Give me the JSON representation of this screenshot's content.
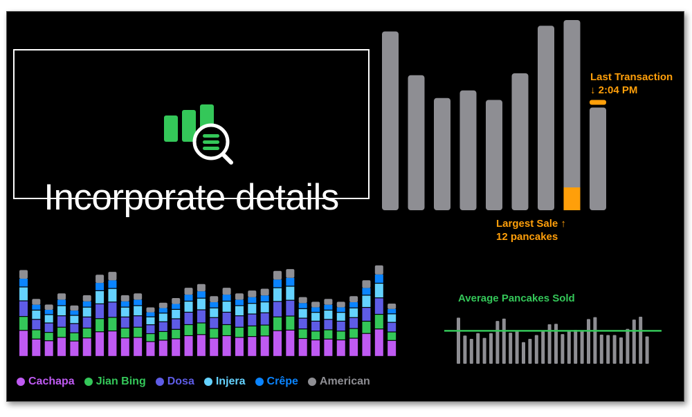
{
  "title": "Incorporate details",
  "icon": "bar-chart-magnifier-icon",
  "colors": {
    "gray_bar": "#8e8e93",
    "highlight": "#ff9f0a",
    "average": "#34c759"
  },
  "annotations": {
    "last_transaction_line1": "Last Transaction",
    "last_transaction_line2": "↓ 2:04 PM",
    "largest_sale_line1": "Largest Sale ↑",
    "largest_sale_line2": "12 pancakes"
  },
  "average_label": "Average Pancakes Sold",
  "legend": [
    {
      "label": "Cachapa",
      "color": "#bf5af2"
    },
    {
      "label": "Jian Bing",
      "color": "#34c759"
    },
    {
      "label": "Dosa",
      "color": "#5e5ce6"
    },
    {
      "label": "Injera",
      "color": "#64d2ff"
    },
    {
      "label": "Crêpe",
      "color": "#0a84ff"
    },
    {
      "label": "American",
      "color": "#8e8e93"
    }
  ],
  "chart_data": [
    {
      "type": "bar",
      "values": [
        0.94,
        0.71,
        0.59,
        0.63,
        0.58,
        0.72,
        0.97,
        1.0,
        0.54
      ],
      "highlighted_index": 7,
      "highlight_fraction": 0.12,
      "last_index": 8,
      "last_fraction": 0.04
    },
    {
      "type": "bar",
      "stacked": true,
      "series_order": [
        "Cachapa",
        "Jian Bing",
        "Dosa",
        "Injera",
        "Crêpe",
        "American"
      ],
      "totals": [
        0.93,
        0.62,
        0.56,
        0.68,
        0.55,
        0.66,
        0.88,
        0.91,
        0.66,
        0.68,
        0.53,
        0.58,
        0.63,
        0.74,
        0.78,
        0.65,
        0.74,
        0.68,
        0.71,
        0.73,
        0.92,
        0.94,
        0.64,
        0.59,
        0.62,
        0.59,
        0.65,
        0.82,
        0.98,
        0.57
      ],
      "fractions": [
        0.3,
        0.16,
        0.18,
        0.16,
        0.1,
        0.1
      ]
    },
    {
      "type": "bar",
      "values": [
        0.98,
        0.6,
        0.53,
        0.65,
        0.55,
        0.65,
        0.91,
        0.96,
        0.66,
        0.7,
        0.46,
        0.53,
        0.61,
        0.69,
        0.84,
        0.85,
        0.63,
        0.7,
        0.72,
        0.7,
        0.95,
        0.99,
        0.62,
        0.61,
        0.61,
        0.56,
        0.74,
        0.94,
        1.0,
        0.58
      ],
      "average": 0.7
    }
  ]
}
